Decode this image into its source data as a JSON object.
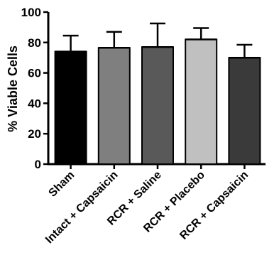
{
  "chart_data": {
    "type": "bar",
    "title": "",
    "xlabel": "",
    "ylabel": "% Viable Cells",
    "ylim": [
      0,
      100
    ],
    "yticks": [
      0,
      20,
      40,
      60,
      80,
      100
    ],
    "categories": [
      "Sham",
      "Intact + Capsaicin",
      "RCR + Saline",
      "RCR + Placebo",
      "RCR + Capsaicin"
    ],
    "values": [
      74,
      76.5,
      77,
      82,
      70
    ],
    "errors": [
      10.5,
      10.5,
      15.5,
      7.5,
      8.5
    ],
    "bar_colors": [
      "#000000",
      "#7f7f7f",
      "#595959",
      "#c0c0c0",
      "#3a3a3a"
    ],
    "grid": false,
    "legend": "none"
  }
}
